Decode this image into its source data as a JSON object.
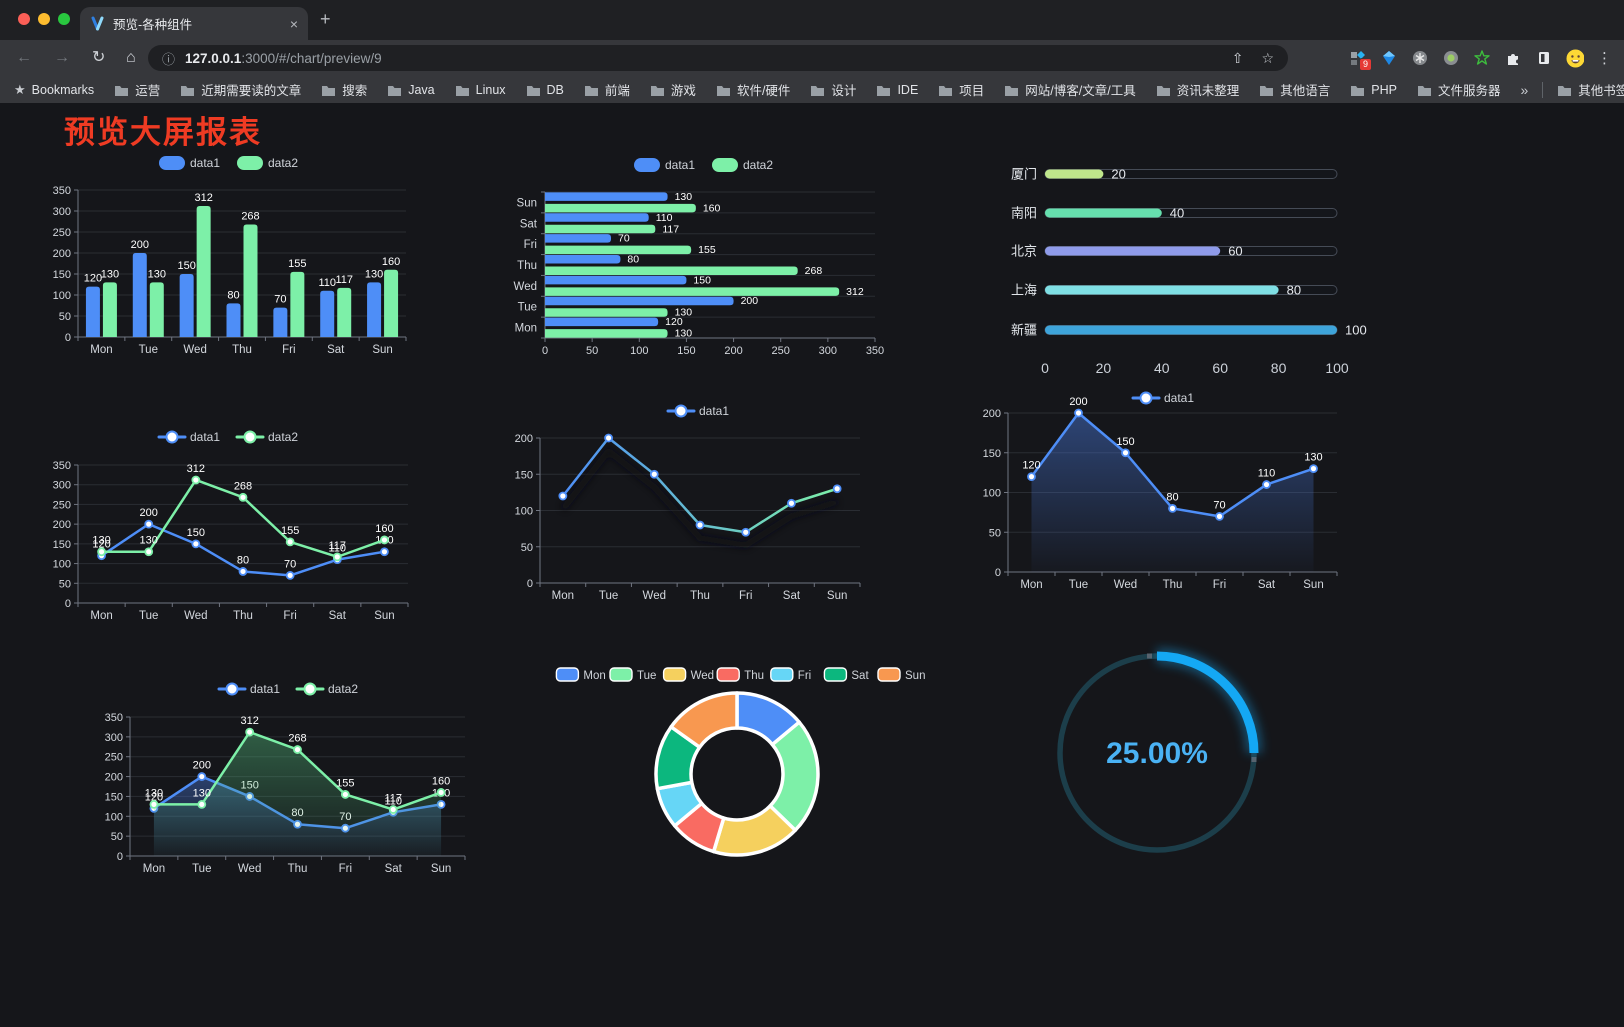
{
  "browser": {
    "tab": {
      "title": "预览-各种组件"
    },
    "toolbar": {
      "url_host": "127.0.0.1",
      "url_rest": ":3000/#/chart/preview/9",
      "extension_badge": "9"
    },
    "bookmarks_bar": {
      "label": "Bookmarks",
      "folders": [
        "运营",
        "近期需要读的文章",
        "搜索",
        "Java",
        "Linux",
        "DB",
        "前端",
        "游戏",
        "软件/硬件",
        "设计",
        "IDE",
        "项目",
        "网站/博客/文章/工具",
        "资讯未整理",
        "其他语言",
        "PHP",
        "文件服务器"
      ],
      "overflow": "»",
      "other_bookmarks": "其他书签"
    }
  },
  "icons": {
    "back": "←",
    "forward": "→",
    "reload": "↻",
    "home": "⌂",
    "info": "ⓘ",
    "share": "⇧",
    "star": "☆",
    "bookmarks_star": "★",
    "menu": "⋮",
    "new_tab": "+",
    "tab_close": "×"
  },
  "page": {
    "title": "预览大屏报表",
    "title_color": "#ef3b23"
  },
  "theme": {
    "content_bg": "#15161a",
    "grid_color": "#2a2d33",
    "axis_color": "#707581",
    "tick_text_color": "#d4d8de",
    "data_label_color": "#ffffff",
    "legend_text_color": "#d0d4da",
    "blue": "#4e8ef7",
    "green": "#7df0a8"
  },
  "chart_data": [
    {
      "id": "bar-grouped",
      "type": "bar",
      "categories": [
        "Mon",
        "Tue",
        "Wed",
        "Thu",
        "Fri",
        "Sat",
        "Sun"
      ],
      "series": [
        {
          "name": "data1",
          "color": "#4e8ef7",
          "values": [
            120,
            200,
            150,
            80,
            70,
            110,
            130
          ]
        },
        {
          "name": "data2",
          "color": "#7df0a8",
          "values": [
            130,
            130,
            312,
            268,
            155,
            117,
            160
          ]
        }
      ],
      "ylim": [
        0,
        350
      ],
      "ytick": 50,
      "legend_position": "top",
      "data_labels": true,
      "grid": true
    },
    {
      "id": "bar-horizontal",
      "type": "bar",
      "orientation": "horizontal",
      "categories": [
        "Mon",
        "Tue",
        "Wed",
        "Thu",
        "Fri",
        "Sat",
        "Sun"
      ],
      "category_order_top_to_bottom": [
        "Sun",
        "Sat",
        "Fri",
        "Thu",
        "Wed",
        "Tue",
        "Mon"
      ],
      "series": [
        {
          "name": "data1",
          "color": "#4e8ef7",
          "values": [
            120,
            200,
            150,
            80,
            70,
            110,
            130
          ]
        },
        {
          "name": "data2",
          "color": "#7df0a8",
          "values": [
            130,
            130,
            312,
            268,
            155,
            117,
            160
          ]
        }
      ],
      "xlim": [
        0,
        350
      ],
      "xtick": 50,
      "legend_position": "top",
      "data_labels": true,
      "grid": true
    },
    {
      "id": "progress-bars",
      "type": "bar",
      "orientation": "horizontal-progress",
      "items": [
        {
          "label": "厦门",
          "value": 20,
          "color": "#bfe68b"
        },
        {
          "label": "南阳",
          "value": 40,
          "color": "#66dfae"
        },
        {
          "label": "北京",
          "value": 60,
          "color": "#8f9bea"
        },
        {
          "label": "上海",
          "value": 80,
          "color": "#7fdfe4"
        },
        {
          "label": "新疆",
          "value": 100,
          "color": "#3ea4da"
        }
      ],
      "xlim": [
        0,
        100
      ],
      "xticks": [
        0,
        20,
        40,
        60,
        80,
        100
      ],
      "track_color": "#14161b",
      "track_border_color": "#454b56"
    },
    {
      "id": "line-dual",
      "type": "line",
      "categories": [
        "Mon",
        "Tue",
        "Wed",
        "Thu",
        "Fri",
        "Sat",
        "Sun"
      ],
      "series": [
        {
          "name": "data1",
          "color": "#4e8ef7",
          "values": [
            120,
            200,
            150,
            80,
            70,
            110,
            130
          ]
        },
        {
          "name": "data2",
          "color": "#7df0a8",
          "values": [
            130,
            130,
            312,
            268,
            155,
            117,
            160
          ]
        }
      ],
      "ylim": [
        0,
        350
      ],
      "ytick": 50,
      "legend_position": "top",
      "data_labels": true,
      "markers": true
    },
    {
      "id": "line-gradient",
      "type": "line",
      "categories": [
        "Mon",
        "Tue",
        "Wed",
        "Thu",
        "Fri",
        "Sat",
        "Sun"
      ],
      "series": [
        {
          "name": "data1",
          "color_gradient": [
            "#4e8ef7",
            "#7df0a8"
          ],
          "marker_color": "#4e8ef7",
          "values": [
            120,
            200,
            150,
            80,
            70,
            110,
            130
          ]
        }
      ],
      "ylim": [
        0,
        200
      ],
      "ytick": 50,
      "legend_position": "top",
      "data_labels": false,
      "markers": true,
      "shadow": true
    },
    {
      "id": "area-single",
      "type": "area",
      "categories": [
        "Mon",
        "Tue",
        "Wed",
        "Thu",
        "Fri",
        "Sat",
        "Sun"
      ],
      "series": [
        {
          "name": "data1",
          "color": "#4e8ef7",
          "fill": "#4674d2",
          "values": [
            120,
            200,
            150,
            80,
            70,
            110,
            130
          ]
        }
      ],
      "ylim": [
        0,
        200
      ],
      "ytick": 50,
      "legend_position": "top",
      "data_labels": true,
      "markers": true
    },
    {
      "id": "area-dual",
      "type": "area",
      "categories": [
        "Mon",
        "Tue",
        "Wed",
        "Thu",
        "Fri",
        "Sat",
        "Sun"
      ],
      "series": [
        {
          "name": "data1",
          "color": "#4e8ef7",
          "fill": "#4674d2",
          "values": [
            120,
            200,
            150,
            80,
            70,
            110,
            130
          ]
        },
        {
          "name": "data2",
          "color": "#7df0a8",
          "fill": "#50b478",
          "values": [
            130,
            130,
            312,
            268,
            155,
            117,
            160
          ]
        }
      ],
      "ylim": [
        0,
        350
      ],
      "ytick": 50,
      "legend_position": "top",
      "data_labels": true,
      "markers": true
    },
    {
      "id": "donut",
      "type": "pie",
      "inner_radius_ratio": 0.57,
      "categories": [
        "Mon",
        "Tue",
        "Wed",
        "Thu",
        "Fri",
        "Sat",
        "Sun"
      ],
      "values": [
        120,
        200,
        150,
        80,
        70,
        110,
        130
      ],
      "colors": [
        "#4e8ef7",
        "#7df0a8",
        "#f5d05e",
        "#f96b62",
        "#66d6f6",
        "#0cb77e",
        "#f89850"
      ],
      "slice_border_color": "#ffffff",
      "legend_position": "top"
    },
    {
      "id": "gauge",
      "type": "gauge",
      "value": 25,
      "display": "25.00%",
      "arc_color": "#14a8f4",
      "track_color": "#1c3e4a",
      "text_color": "#4ab2f4",
      "start": "top",
      "direction": "clockwise"
    }
  ]
}
